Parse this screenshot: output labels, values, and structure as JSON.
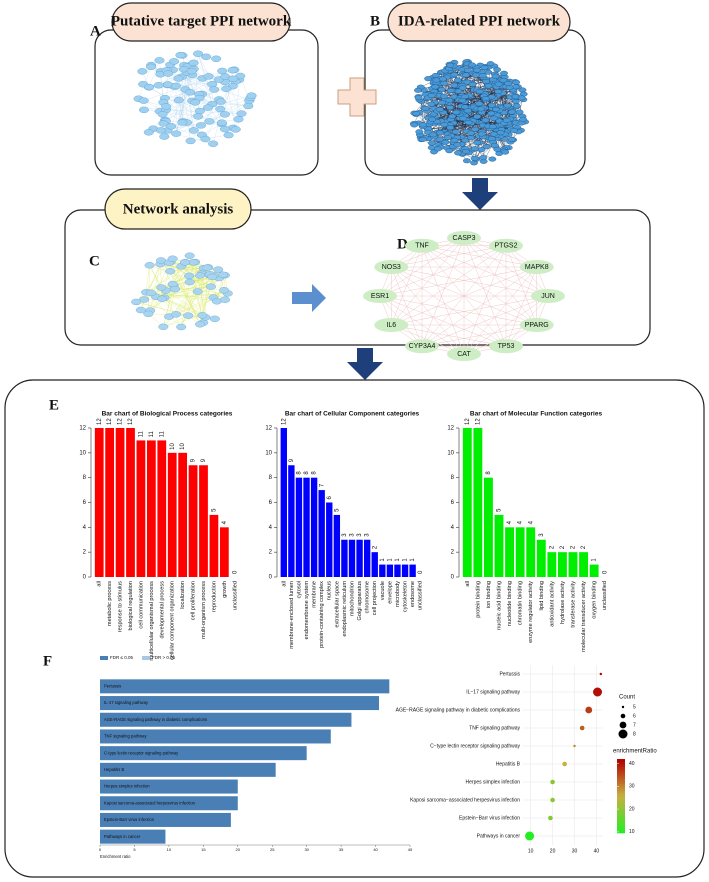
{
  "panels": {
    "labels": [
      "A",
      "B",
      "C",
      "D",
      "E",
      "F"
    ]
  },
  "network_a": {
    "title": "Putative target PPI network"
  },
  "network_b": {
    "title": "IDA-related PPI network"
  },
  "network_analysis": {
    "title": "Network analysis",
    "hub_nodes": [
      "CASP3",
      "PTGS2",
      "MAPK8",
      "JUN",
      "PPARG",
      "TP53",
      "CAT",
      "CYP3A4",
      "IL6",
      "ESR1",
      "NOS3",
      "TNF"
    ]
  },
  "chart_data": [
    {
      "type": "bar",
      "title": "Bar chart of Biological Process categories",
      "color": "#ff0000",
      "categories": [
        "all",
        "metabolic process",
        "response to stimulus",
        "biological regulation",
        "cell communication",
        "multicellular organismal process",
        "developmental process",
        "cellular component organization",
        "localization",
        "cell proliferation",
        "multi-organism process",
        "reproduction",
        "growth",
        "unclassified"
      ],
      "values": [
        12,
        12,
        12,
        12,
        11,
        11,
        11,
        10,
        10,
        9,
        9,
        5,
        4,
        0
      ],
      "ylim": [
        0,
        12
      ],
      "yticks": [
        0,
        2,
        4,
        6,
        8,
        10,
        12
      ]
    },
    {
      "type": "bar",
      "title": "Bar chart of Cellular Component categories",
      "color": "#0000ff",
      "categories": [
        "all",
        "membrane-enclosed lumen",
        "cytosol",
        "endomembrane system",
        "membrane",
        "protein-containing complex",
        "nucleus",
        "extracellular space",
        "endoplasmic reticulum",
        "mitochondrion",
        "Golgi apparatus",
        "chromosome",
        "cell projection",
        "vacuole",
        "envelope",
        "microbody",
        "cytoskeleton",
        "endosome",
        "unclassified"
      ],
      "values": [
        12,
        9,
        8,
        8,
        8,
        7,
        6,
        5,
        3,
        3,
        3,
        3,
        2,
        1,
        1,
        1,
        1,
        1,
        0
      ],
      "ylim": [
        0,
        12
      ],
      "yticks": [
        0,
        2,
        4,
        6,
        8,
        10,
        12
      ]
    },
    {
      "type": "bar",
      "title": "Bar chart of Molecular Function categories",
      "color": "#00ee00",
      "categories": [
        "all",
        "protein binding",
        "ion binding",
        "nucleic acid binding",
        "nucleotide binding",
        "chromatin binding",
        "enzyme regulator activity",
        "lipid binding",
        "antioxidant activity",
        "hydrolase activity",
        "transferase activity",
        "molecular transducer activity",
        "oxygen binding",
        "unclassified"
      ],
      "values": [
        12,
        12,
        8,
        5,
        4,
        4,
        4,
        3,
        2,
        2,
        2,
        2,
        1,
        0
      ],
      "ylim": [
        0,
        12
      ],
      "yticks": [
        0,
        2,
        4,
        6,
        8,
        10,
        12
      ]
    },
    {
      "type": "barh",
      "xlabel": "Enrichment ratio",
      "color": "#4a7fb5",
      "legend": [
        {
          "name": "FDR ≤ 0.05",
          "color": "#4a7fb5"
        },
        {
          "name": "FDR > 0.05",
          "color": "#a9c6e3"
        }
      ],
      "categories": [
        "Pertussis",
        "IL-17 signaling pathway",
        "AGE-RAGE signaling pathway in diabetic complications",
        "TNF signaling pathway",
        "C-type lectin receptor signaling pathway",
        "Hepatitis B",
        "Herpes simplex infection",
        "Kaposi sarcoma-associated herpesvirus infection",
        "Epstein-Barr virus infection",
        "Pathways in cancer"
      ],
      "values": [
        42,
        40.5,
        36.5,
        33.5,
        30,
        25.5,
        20,
        20,
        19,
        9.5
      ],
      "xlim": [
        0,
        45
      ],
      "xticks": [
        0,
        5,
        10,
        15,
        20,
        25,
        30,
        35,
        40,
        45
      ]
    },
    {
      "type": "dot",
      "categories": [
        "Pertussis",
        "IL−17 signaling pathway",
        "AGE−RAGE signaling pathway in diabetic complications",
        "TNF signaling pathway",
        "C−type lectin receptor signaling pathway",
        "Hepatitis B",
        "Herpes simplex infection",
        "Kaposi sarcoma−associated herpesvirus infection",
        "Epstein−Barr virus infection",
        "Pathways in cancer"
      ],
      "values": [
        42,
        40.5,
        36.5,
        33.5,
        30,
        25.5,
        20,
        20,
        19,
        9.5
      ],
      "sizes": [
        5,
        8,
        7,
        6,
        5,
        6,
        6,
        6,
        6,
        8
      ],
      "xlim": [
        6.5,
        43
      ],
      "xticks": [
        10,
        20,
        30,
        40
      ],
      "size_title": "Count",
      "size_ticks": [
        5,
        6,
        7,
        8
      ],
      "color_title": "enrichmentRatio",
      "clim": [
        9.5,
        42
      ],
      "cticks": [
        10,
        20,
        30,
        40
      ],
      "colors": [
        "#22ee22",
        "#c8b040",
        "#b00000"
      ]
    }
  ]
}
